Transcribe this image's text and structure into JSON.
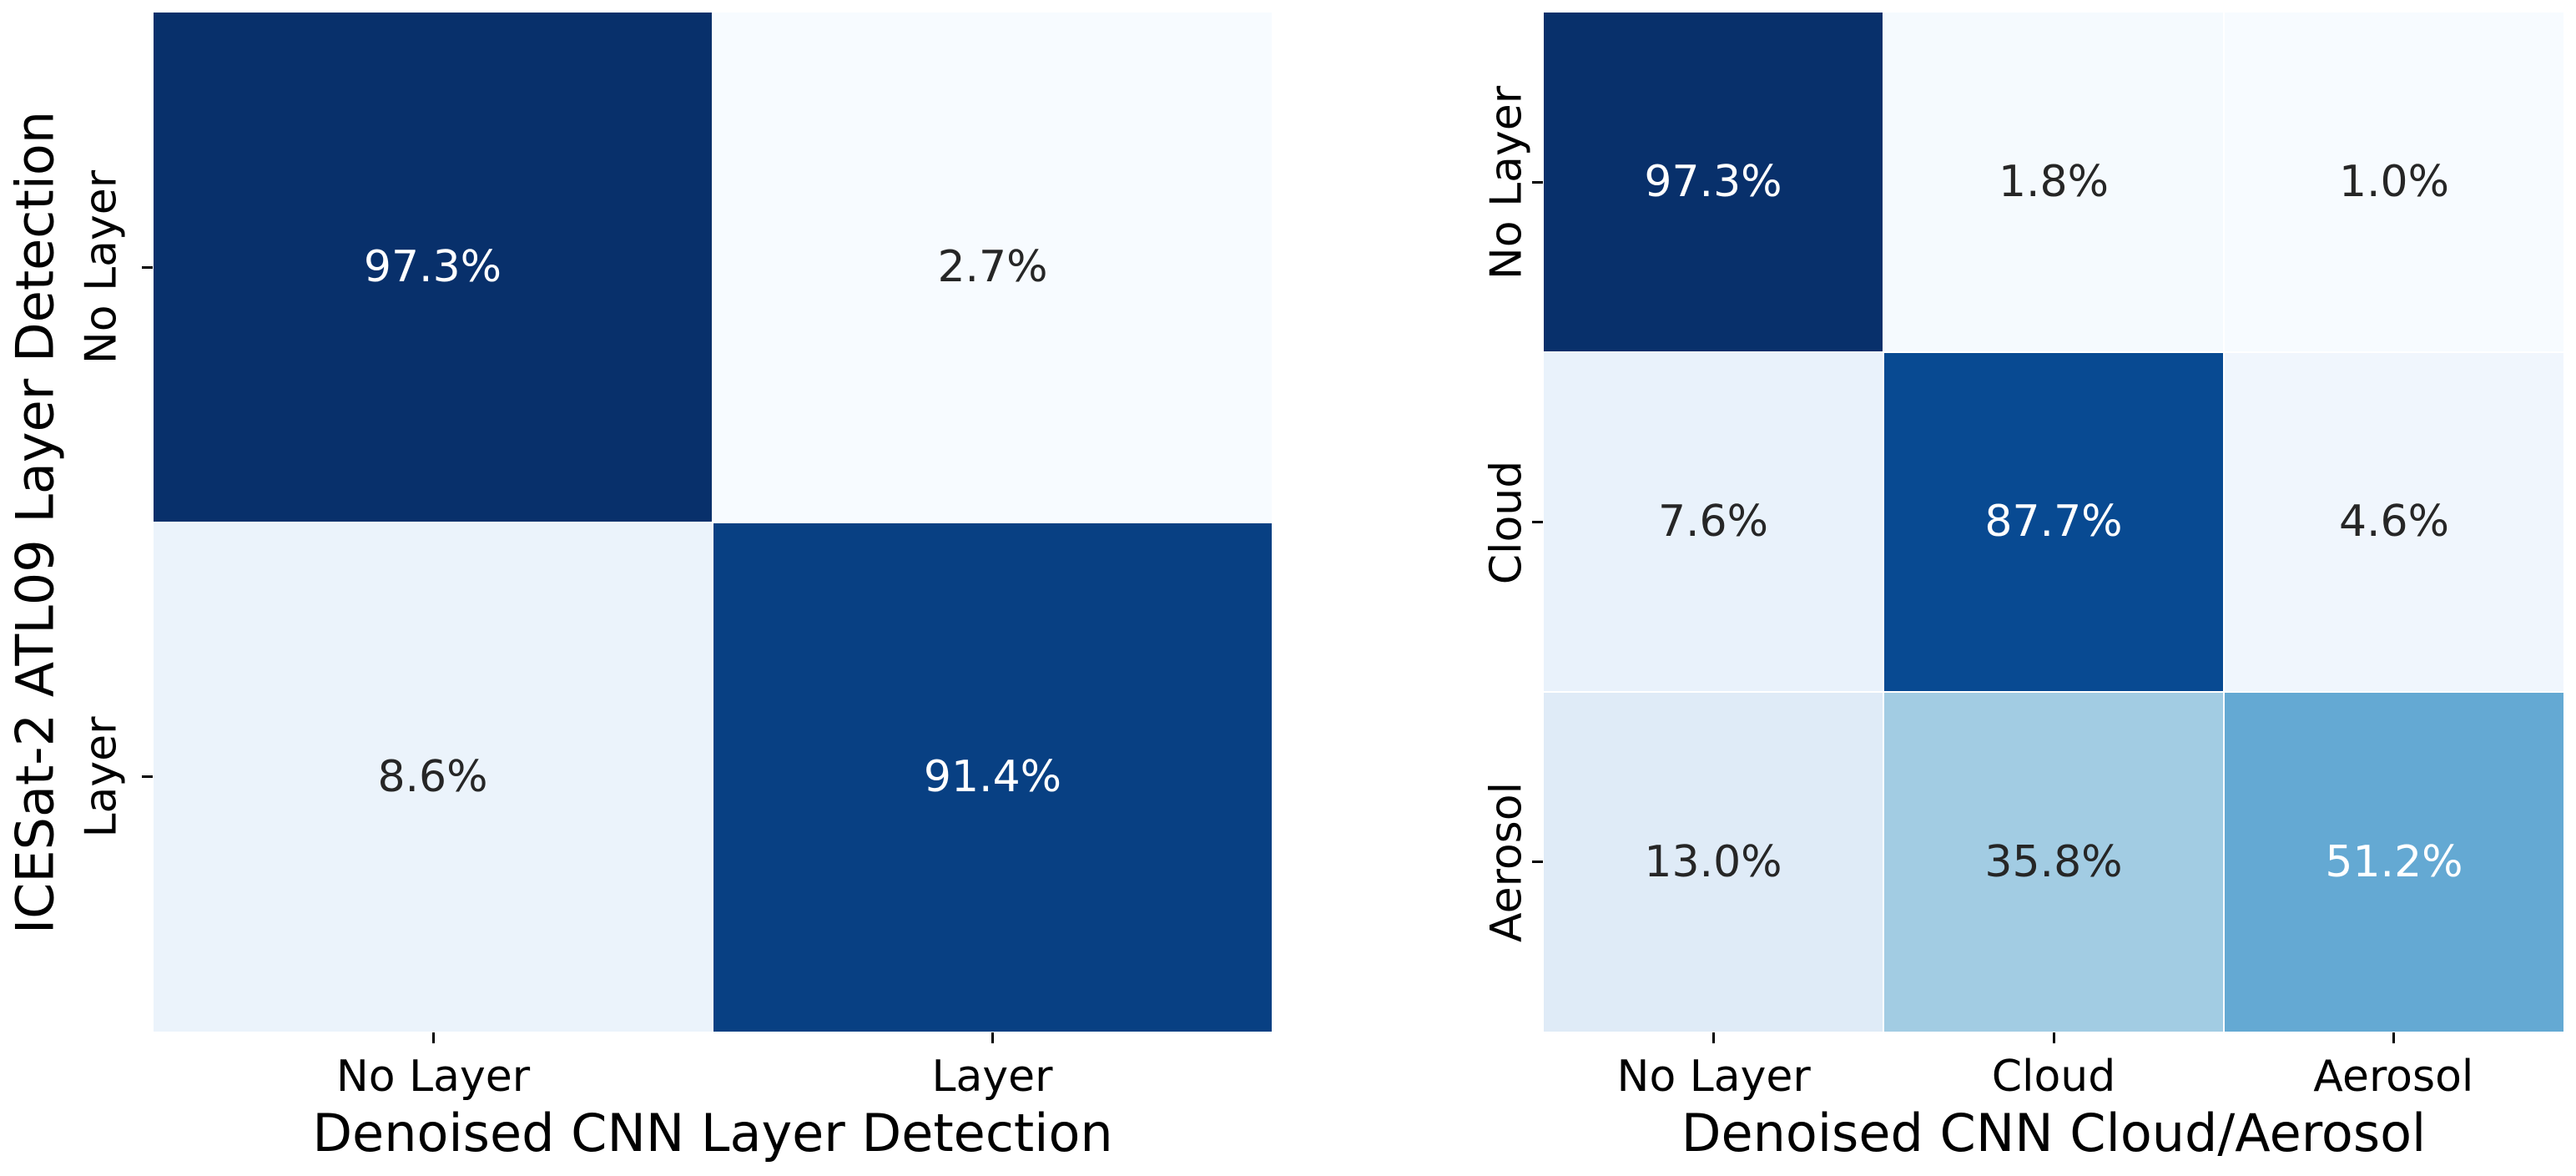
{
  "figure": {
    "background": "#ffffff",
    "colormap": "Blues",
    "text_color": "#000000"
  },
  "chart_data": [
    {
      "type": "heatmap",
      "name": "layer-detection-confusion-matrix",
      "title": "",
      "xlabel": "Denoised CNN Layer Detection",
      "ylabel": "ICESat-2 ATL09 Layer Detection",
      "x_categories": [
        "No Layer",
        "Layer"
      ],
      "y_categories": [
        "No Layer",
        "Layer"
      ],
      "values_percent": [
        [
          97.3,
          2.7
        ],
        [
          8.6,
          91.4
        ]
      ],
      "cell_labels": [
        [
          "97.3%",
          "2.7%"
        ],
        [
          "8.6%",
          "91.4%"
        ]
      ],
      "cell_colors": [
        [
          "#08306b",
          "#f7fbff"
        ],
        [
          "#ebf3fb",
          "#084083"
        ]
      ],
      "cell_text_colors": [
        [
          "#ffffff",
          "#262626"
        ],
        [
          "#262626",
          "#ffffff"
        ]
      ],
      "colormap": "Blues",
      "grid": false,
      "legend": "none",
      "value_range": [
        2.7,
        97.3
      ]
    },
    {
      "type": "heatmap",
      "name": "cloud-aerosol-confusion-matrix",
      "title": "",
      "xlabel": "Denoised CNN Cloud/Aerosol",
      "ylabel": "",
      "x_categories": [
        "No Layer",
        "Cloud",
        "Aerosol"
      ],
      "y_categories": [
        "No Layer",
        "Cloud",
        "Aerosol"
      ],
      "values_percent": [
        [
          97.3,
          1.8,
          1.0
        ],
        [
          7.6,
          87.7,
          4.6
        ],
        [
          13.0,
          35.8,
          51.2
        ]
      ],
      "cell_labels": [
        [
          "97.3%",
          "1.8%",
          "1.0%"
        ],
        [
          "7.6%",
          "87.7%",
          "4.6%"
        ],
        [
          "13.0%",
          "35.8%",
          "51.2%"
        ]
      ],
      "cell_colors": [
        [
          "#08306b",
          "#f5fafe",
          "#f7fbff"
        ],
        [
          "#e9f2fb",
          "#084a92",
          "#f0f6fd"
        ],
        [
          "#dfebf7",
          "#a2cce3",
          "#64a9d3"
        ]
      ],
      "cell_text_colors": [
        [
          "#ffffff",
          "#262626",
          "#262626"
        ],
        [
          "#262626",
          "#ffffff",
          "#262626"
        ],
        [
          "#262626",
          "#262626",
          "#ffffff"
        ]
      ],
      "colormap": "Blues",
      "grid": false,
      "legend": "none",
      "value_range": [
        1.0,
        97.3
      ]
    }
  ]
}
